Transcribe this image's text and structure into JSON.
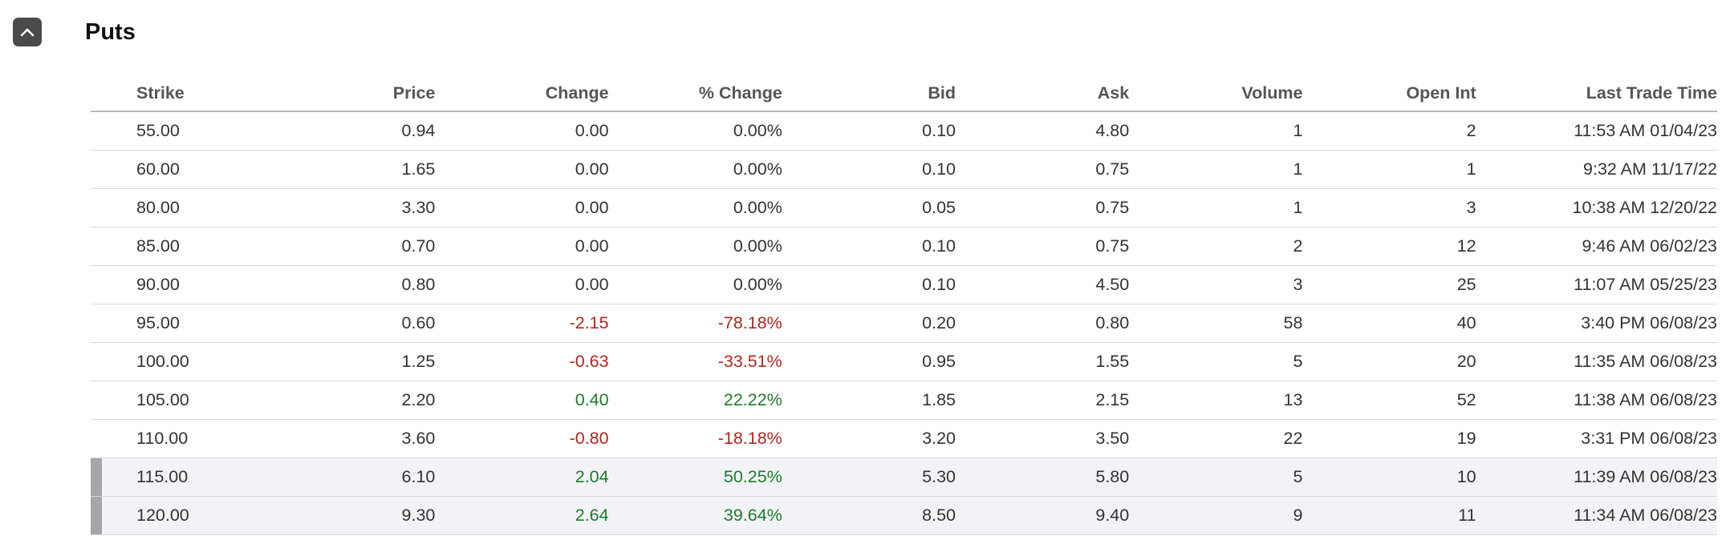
{
  "section": {
    "title": "Puts",
    "toggle_icon": "chevron-up-icon"
  },
  "table": {
    "headers": [
      "Strike",
      "Price",
      "Change",
      "% Change",
      "Bid",
      "Ask",
      "Volume",
      "Open Int",
      "Last Trade Time"
    ],
    "rows": [
      {
        "strike": "55.00",
        "price": "0.94",
        "change": "0.00",
        "pct_change": "0.00%",
        "bid": "0.10",
        "ask": "4.80",
        "volume": "1",
        "open_int": "2",
        "last_trade": "11:53 AM 01/04/23",
        "trend": "flat",
        "in_the_money": false
      },
      {
        "strike": "60.00",
        "price": "1.65",
        "change": "0.00",
        "pct_change": "0.00%",
        "bid": "0.10",
        "ask": "0.75",
        "volume": "1",
        "open_int": "1",
        "last_trade": "9:32 AM 11/17/22",
        "trend": "flat",
        "in_the_money": false
      },
      {
        "strike": "80.00",
        "price": "3.30",
        "change": "0.00",
        "pct_change": "0.00%",
        "bid": "0.05",
        "ask": "0.75",
        "volume": "1",
        "open_int": "3",
        "last_trade": "10:38 AM 12/20/22",
        "trend": "flat",
        "in_the_money": false
      },
      {
        "strike": "85.00",
        "price": "0.70",
        "change": "0.00",
        "pct_change": "0.00%",
        "bid": "0.10",
        "ask": "0.75",
        "volume": "2",
        "open_int": "12",
        "last_trade": "9:46 AM 06/02/23",
        "trend": "flat",
        "in_the_money": false
      },
      {
        "strike": "90.00",
        "price": "0.80",
        "change": "0.00",
        "pct_change": "0.00%",
        "bid": "0.10",
        "ask": "4.50",
        "volume": "3",
        "open_int": "25",
        "last_trade": "11:07 AM 05/25/23",
        "trend": "flat",
        "in_the_money": false
      },
      {
        "strike": "95.00",
        "price": "0.60",
        "change": "-2.15",
        "pct_change": "-78.18%",
        "bid": "0.20",
        "ask": "0.80",
        "volume": "58",
        "open_int": "40",
        "last_trade": "3:40 PM 06/08/23",
        "trend": "down",
        "in_the_money": false
      },
      {
        "strike": "100.00",
        "price": "1.25",
        "change": "-0.63",
        "pct_change": "-33.51%",
        "bid": "0.95",
        "ask": "1.55",
        "volume": "5",
        "open_int": "20",
        "last_trade": "11:35 AM 06/08/23",
        "trend": "down",
        "in_the_money": false
      },
      {
        "strike": "105.00",
        "price": "2.20",
        "change": "0.40",
        "pct_change": "22.22%",
        "bid": "1.85",
        "ask": "2.15",
        "volume": "13",
        "open_int": "52",
        "last_trade": "11:38 AM 06/08/23",
        "trend": "up",
        "in_the_money": false
      },
      {
        "strike": "110.00",
        "price": "3.60",
        "change": "-0.80",
        "pct_change": "-18.18%",
        "bid": "3.20",
        "ask": "3.50",
        "volume": "22",
        "open_int": "19",
        "last_trade": "3:31 PM 06/08/23",
        "trend": "down",
        "in_the_money": false
      },
      {
        "strike": "115.00",
        "price": "6.10",
        "change": "2.04",
        "pct_change": "50.25%",
        "bid": "5.30",
        "ask": "5.80",
        "volume": "5",
        "open_int": "10",
        "last_trade": "11:39 AM 06/08/23",
        "trend": "up",
        "in_the_money": true
      },
      {
        "strike": "120.00",
        "price": "9.30",
        "change": "2.64",
        "pct_change": "39.64%",
        "bid": "8.50",
        "ask": "9.40",
        "volume": "9",
        "open_int": "11",
        "last_trade": "11:34 AM 06/08/23",
        "trend": "up",
        "in_the_money": true
      }
    ]
  },
  "colors": {
    "negative": "#b3261e",
    "positive": "#1f7a2e",
    "in_the_money_bg": "#f2f3f6",
    "in_the_money_marker": "#a6a6aa"
  }
}
